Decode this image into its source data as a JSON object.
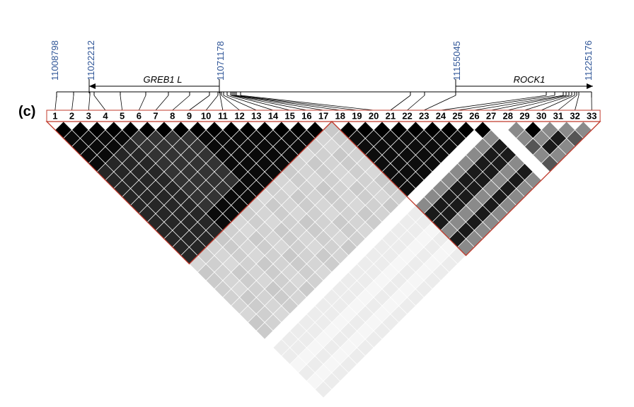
{
  "panel_label": "(c)",
  "positions": [
    "11008798",
    "11022212",
    "11071178",
    "11155045",
    "11225176"
  ],
  "genes": [
    {
      "name": "GREB1 L"
    },
    {
      "name": "ROCK1"
    }
  ],
  "markers": [
    "1",
    "2",
    "3",
    "4",
    "5",
    "6",
    "7",
    "8",
    "9",
    "10",
    "11",
    "12",
    "13",
    "14",
    "15",
    "16",
    "17",
    "18",
    "19",
    "20",
    "21",
    "22",
    "23",
    "24",
    "25",
    "26",
    "27",
    "28",
    "29",
    "30",
    "31",
    "32",
    "33"
  ],
  "blocks": [
    {
      "start": 1,
      "end": 17
    },
    {
      "start": 18,
      "end": 33
    }
  ],
  "colors": {
    "block_outline": "#C0392B",
    "position_text": "#2F5597",
    "cell_border": "#ffffff"
  }
}
